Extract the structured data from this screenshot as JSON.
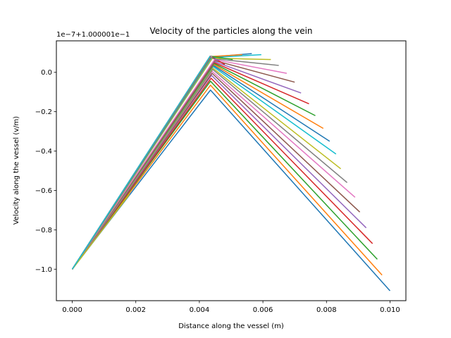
{
  "chart_data": {
    "type": "line",
    "title": "Velocity of the particles along the vein",
    "xlabel": "Distance along the vessel (m)",
    "ylabel": "Velocity along the vessel (v/m)",
    "y_offset_text": "1e−7+1.000001e−1",
    "xlim": [
      -0.0005,
      0.0105
    ],
    "ylim": [
      -1.16,
      0.16
    ],
    "x_ticks": [
      0.0,
      0.002,
      0.004,
      0.006,
      0.008,
      0.01
    ],
    "x_tick_labels": [
      "0.000",
      "0.002",
      "0.004",
      "0.006",
      "0.008",
      "0.010"
    ],
    "y_ticks": [
      -1.0,
      -0.8,
      -0.6,
      -0.4,
      -0.2,
      0.0
    ],
    "y_tick_labels": [
      "−1.0",
      "−0.8",
      "−0.6",
      "−0.4",
      "−0.2",
      "0.0"
    ],
    "grid": false,
    "legend": "none",
    "series": [
      {
        "color": "#1f77b4",
        "x": [
          0.0,
          0.00435,
          0.01
        ],
        "y": [
          -1.0,
          -0.09,
          -1.11
        ]
      },
      {
        "color": "#ff7f0e",
        "x": [
          0.0,
          0.00435,
          0.00975
        ],
        "y": [
          -1.0,
          -0.065,
          -1.03
        ]
      },
      {
        "color": "#2ca02c",
        "x": [
          0.0,
          0.00435,
          0.0096
        ],
        "y": [
          -1.0,
          -0.045,
          -0.95
        ]
      },
      {
        "color": "#d62728",
        "x": [
          0.0,
          0.00437,
          0.00945
        ],
        "y": [
          -1.0,
          -0.03,
          -0.87
        ]
      },
      {
        "color": "#9467bd",
        "x": [
          0.0,
          0.00438,
          0.00925
        ],
        "y": [
          -1.0,
          -0.015,
          -0.79
        ]
      },
      {
        "color": "#8c564b",
        "x": [
          0.0,
          0.0044,
          0.00905
        ],
        "y": [
          -1.0,
          -0.005,
          -0.71
        ]
      },
      {
        "color": "#e377c2",
        "x": [
          0.0,
          0.0044,
          0.0089
        ],
        "y": [
          -1.0,
          0.005,
          -0.635
        ]
      },
      {
        "color": "#7f7f7f",
        "x": [
          0.0,
          0.00442,
          0.00865
        ],
        "y": [
          -1.0,
          0.015,
          -0.56
        ]
      },
      {
        "color": "#bcbd22",
        "x": [
          0.0,
          0.00442,
          0.00845
        ],
        "y": [
          -1.0,
          0.022,
          -0.49
        ]
      },
      {
        "color": "#17becf",
        "x": [
          0.0,
          0.00443,
          0.0083
        ],
        "y": [
          -1.0,
          0.03,
          -0.415
        ]
      },
      {
        "color": "#1f77b4",
        "x": [
          0.0,
          0.00444,
          0.0081
        ],
        "y": [
          -1.0,
          0.035,
          -0.35
        ]
      },
      {
        "color": "#ff7f0e",
        "x": [
          0.0,
          0.00445,
          0.0079
        ],
        "y": [
          -1.0,
          0.04,
          -0.285
        ]
      },
      {
        "color": "#2ca02c",
        "x": [
          0.0,
          0.00446,
          0.00765
        ],
        "y": [
          -1.0,
          0.045,
          -0.22
        ]
      },
      {
        "color": "#d62728",
        "x": [
          0.0,
          0.00446,
          0.00745
        ],
        "y": [
          -1.0,
          0.05,
          -0.16
        ]
      },
      {
        "color": "#9467bd",
        "x": [
          0.0,
          0.00447,
          0.0072
        ],
        "y": [
          -1.0,
          0.055,
          -0.105
        ]
      },
      {
        "color": "#8c564b",
        "x": [
          0.0,
          0.00448,
          0.007
        ],
        "y": [
          -1.0,
          0.06,
          -0.05
        ]
      },
      {
        "color": "#e377c2",
        "x": [
          0.0,
          0.00448,
          0.00675
        ],
        "y": [
          -1.0,
          0.065,
          -0.005
        ]
      },
      {
        "color": "#7f7f7f",
        "x": [
          0.0,
          0.0044,
          0.0065
        ],
        "y": [
          -1.0,
          0.07,
          0.035
        ]
      },
      {
        "color": "#bcbd22",
        "x": [
          0.0,
          0.0044,
          0.00625
        ],
        "y": [
          -1.0,
          0.072,
          0.065
        ]
      },
      {
        "color": "#17becf",
        "x": [
          0.0,
          0.00438,
          0.00595
        ],
        "y": [
          -1.0,
          0.075,
          0.09
        ]
      },
      {
        "color": "#1f77b4",
        "x": [
          0.0,
          0.00437,
          0.00565
        ],
        "y": [
          -1.0,
          0.078,
          0.095
        ]
      },
      {
        "color": "#ff7f0e",
        "x": [
          0.0,
          0.00436,
          0.00535
        ],
        "y": [
          -1.0,
          0.08,
          0.09
        ]
      },
      {
        "color": "#2ca02c",
        "x": [
          0.0,
          0.00435,
          0.00505
        ],
        "y": [
          -1.0,
          0.082,
          0.065
        ]
      },
      {
        "color": "#d62728",
        "x": [
          0.0,
          0.00435,
          0.0048
        ],
        "y": [
          -1.0,
          0.082,
          0.04
        ]
      },
      {
        "color": "#9467bd",
        "x": [
          0.0,
          0.00434,
          0.0046
        ],
        "y": [
          -1.0,
          0.082,
          0.06
        ]
      },
      {
        "color": "#8c564b",
        "x": [
          0.0,
          0.00434,
          0.0045
        ],
        "y": [
          -1.0,
          0.082,
          0.07
        ]
      },
      {
        "color": "#e377c2",
        "x": [
          0.0,
          0.00434,
          0.0044
        ],
        "y": [
          -1.0,
          0.082,
          0.078
        ]
      },
      {
        "color": "#7f7f7f",
        "x": [
          0.0,
          0.00434,
          0.00436
        ],
        "y": [
          -1.0,
          0.082,
          0.08
        ]
      },
      {
        "color": "#bcbd22",
        "x": [
          0.0,
          0.0018
        ],
        "y": [
          -1.0,
          -0.62
        ]
      },
      {
        "color": "#17becf",
        "x": [
          0.0,
          0.00434
        ],
        "y": [
          -1.0,
          0.082
        ]
      }
    ]
  }
}
